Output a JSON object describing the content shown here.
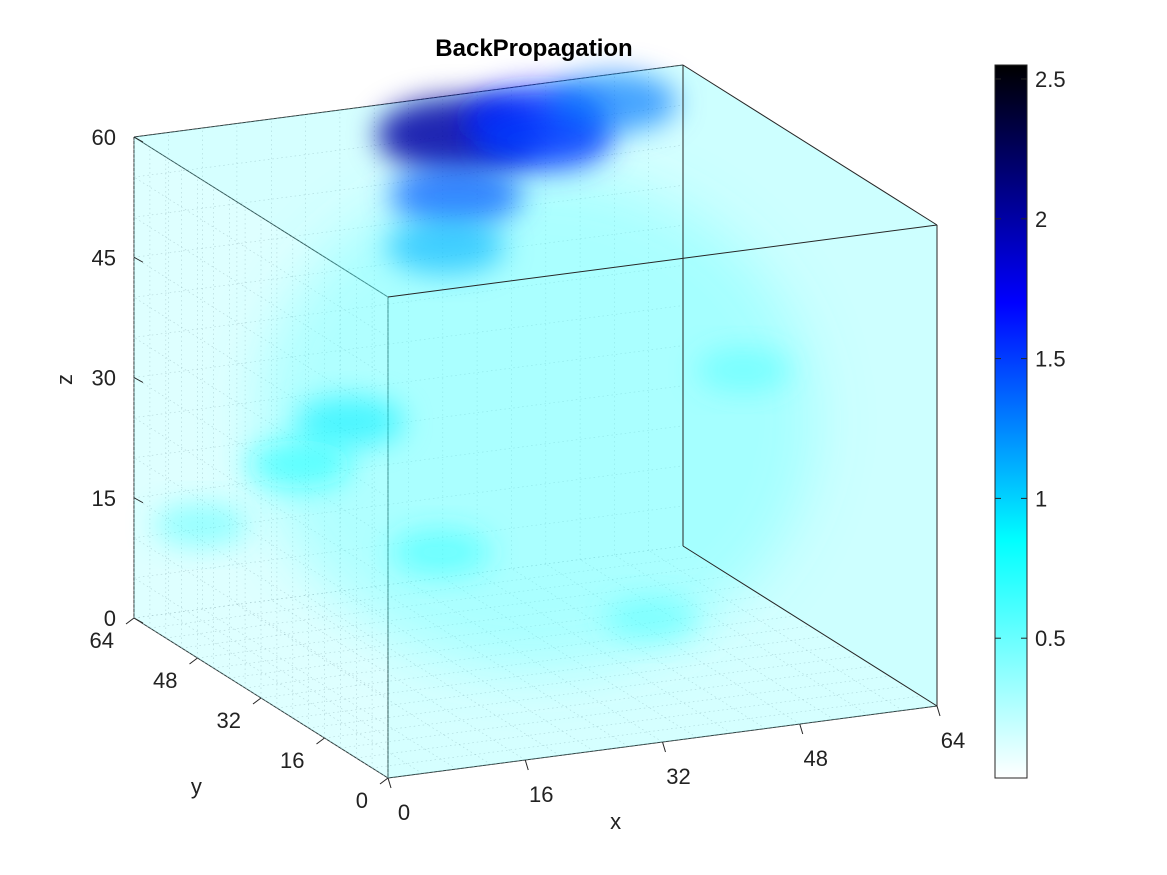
{
  "chart_data": {
    "type": "volume",
    "title": "BackPropagation",
    "xlabel": "x",
    "ylabel": "y",
    "zlabel": "z",
    "xlim": [
      0,
      64
    ],
    "ylim": [
      0,
      64
    ],
    "zlim": [
      0,
      60
    ],
    "x_ticks": [
      "0",
      "16",
      "32",
      "48",
      "64"
    ],
    "y_ticks": [
      "0",
      "16",
      "32",
      "48",
      "64"
    ],
    "z_ticks": [
      "0",
      "15",
      "30",
      "45",
      "60"
    ],
    "colorbar": {
      "range": [
        0,
        2.55
      ],
      "ticks": [
        "0.5",
        "1",
        "1.5",
        "2",
        "2.5"
      ],
      "tick_values": [
        0.5,
        1,
        1.5,
        2,
        2.5
      ],
      "colormap": [
        "#ffffff",
        "#00ffff",
        "#0000ff",
        "#000000"
      ]
    },
    "grid": true,
    "volume_hotspots": [
      {
        "x": 34,
        "y": 56,
        "z": 58,
        "value": 2.0
      },
      {
        "x": 44,
        "y": 58,
        "z": 58,
        "value": 1.6
      },
      {
        "x": 44,
        "y": 56,
        "z": 56,
        "value": 1.5
      },
      {
        "x": 32,
        "y": 52,
        "z": 52,
        "value": 1.4
      },
      {
        "x": 54,
        "y": 60,
        "z": 58,
        "value": 1.3
      },
      {
        "x": 28,
        "y": 46,
        "z": 48,
        "value": 1.1
      },
      {
        "x": 14,
        "y": 40,
        "z": 30,
        "value": 0.9
      },
      {
        "x": 10,
        "y": 44,
        "z": 24,
        "value": 0.8
      },
      {
        "x": 20,
        "y": 30,
        "z": 16,
        "value": 0.7
      },
      {
        "x": 40,
        "y": 20,
        "z": 8,
        "value": 0.6
      },
      {
        "x": 6,
        "y": 60,
        "z": 12,
        "value": 0.6
      },
      {
        "x": 60,
        "y": 40,
        "z": 30,
        "value": 0.6
      }
    ],
    "background_level": 0.55
  }
}
